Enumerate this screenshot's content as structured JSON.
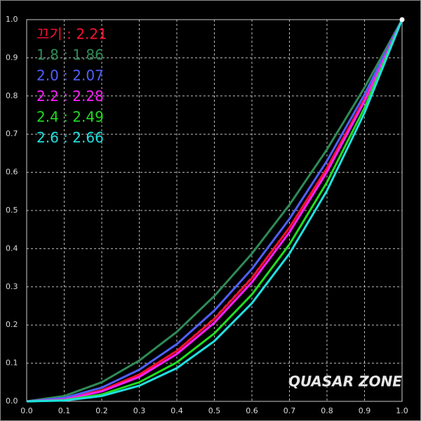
{
  "chart_data": {
    "type": "line",
    "x": [
      0.0,
      0.1,
      0.2,
      0.3,
      0.4,
      0.5,
      0.6,
      0.7,
      0.8,
      0.9,
      1.0
    ],
    "series": [
      {
        "color": "#bbbbbb",
        "dashed": true,
        "values": [
          0,
          0.005,
          0.029,
          0.071,
          0.133,
          0.218,
          0.325,
          0.456,
          0.612,
          0.793,
          1.0
        ]
      },
      {
        "name": "끄기 : 2.21",
        "color": "#ff1030",
        "values": [
          0,
          0.006,
          0.029,
          0.07,
          0.132,
          0.216,
          0.323,
          0.455,
          0.611,
          0.792,
          1.0
        ]
      },
      {
        "name": "1.8 : 1.86",
        "color": "#2e8b57",
        "values": [
          0,
          0.014,
          0.05,
          0.107,
          0.182,
          0.276,
          0.387,
          0.515,
          0.66,
          0.822,
          1.0
        ]
      },
      {
        "name": "2.0 : 2.07",
        "color": "#5060ff",
        "values": [
          0,
          0.009,
          0.036,
          0.083,
          0.15,
          0.238,
          0.347,
          0.478,
          0.63,
          0.804,
          1.0
        ]
      },
      {
        "name": "2.2 : 2.28",
        "color": "#ff20ff",
        "values": [
          0,
          0.005,
          0.026,
          0.064,
          0.124,
          0.206,
          0.312,
          0.443,
          0.601,
          0.786,
          1.0
        ]
      },
      {
        "name": "2.4 : 2.49",
        "color": "#20dd20",
        "values": [
          0,
          0.003,
          0.018,
          0.05,
          0.102,
          0.178,
          0.28,
          0.411,
          0.574,
          0.769,
          1.0
        ]
      },
      {
        "name": "2.6 : 2.66",
        "color": "#20e0e0",
        "values": [
          0,
          0.002,
          0.014,
          0.041,
          0.087,
          0.158,
          0.257,
          0.387,
          0.552,
          0.756,
          1.0
        ]
      }
    ],
    "xlim": [
      0,
      1
    ],
    "ylim": [
      0,
      1
    ],
    "xticks": [
      {
        "value": 0,
        "label": "0.0"
      },
      0.1,
      0.2,
      0.3,
      0.4,
      0.5,
      0.6,
      0.7,
      0.8,
      0.9,
      {
        "value": 1,
        "label": "1.0"
      }
    ],
    "yticks": [
      {
        "value": 0,
        "label": "0.0"
      },
      0.1,
      0.2,
      0.3,
      0.4,
      0.5,
      0.6,
      0.7,
      0.8,
      0.9,
      {
        "value": 1,
        "label": "1.0"
      }
    ],
    "grid": true,
    "watermark": "QUASAR ZONE"
  }
}
